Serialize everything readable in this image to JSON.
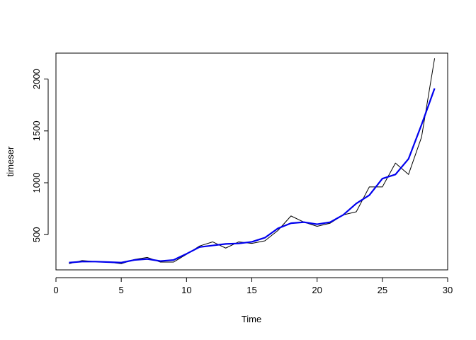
{
  "chart_data": {
    "type": "line",
    "title": "",
    "xlabel": "Time",
    "ylabel": "timeser",
    "xlim": [
      0,
      30
    ],
    "ylim": [
      160,
      2250
    ],
    "grid": false,
    "legend": "none",
    "x_ticks": [
      0,
      5,
      10,
      15,
      20,
      25,
      30
    ],
    "y_ticks": [
      500,
      1000,
      1500,
      2000
    ],
    "x": [
      1,
      2,
      3,
      4,
      5,
      6,
      7,
      8,
      9,
      10,
      11,
      12,
      13,
      14,
      15,
      16,
      17,
      18,
      19,
      20,
      21,
      22,
      23,
      24,
      25,
      26,
      27,
      28,
      29
    ],
    "series": [
      {
        "color": "#000000",
        "stroke_width": 1,
        "values": [
          220,
          250,
          240,
          235,
          220,
          260,
          280,
          235,
          235,
          310,
          390,
          430,
          370,
          430,
          415,
          440,
          540,
          680,
          620,
          580,
          610,
          690,
          720,
          960,
          960,
          1190,
          1080,
          1440,
          2200
        ]
      },
      {
        "color": "#0000ee",
        "stroke_width": 2.2,
        "values": [
          230,
          240,
          240,
          235,
          230,
          255,
          265,
          245,
          255,
          315,
          380,
          395,
          410,
          415,
          430,
          470,
          560,
          610,
          620,
          600,
          620,
          690,
          800,
          880,
          1040,
          1080,
          1230,
          1560,
          1910
        ]
      }
    ]
  }
}
